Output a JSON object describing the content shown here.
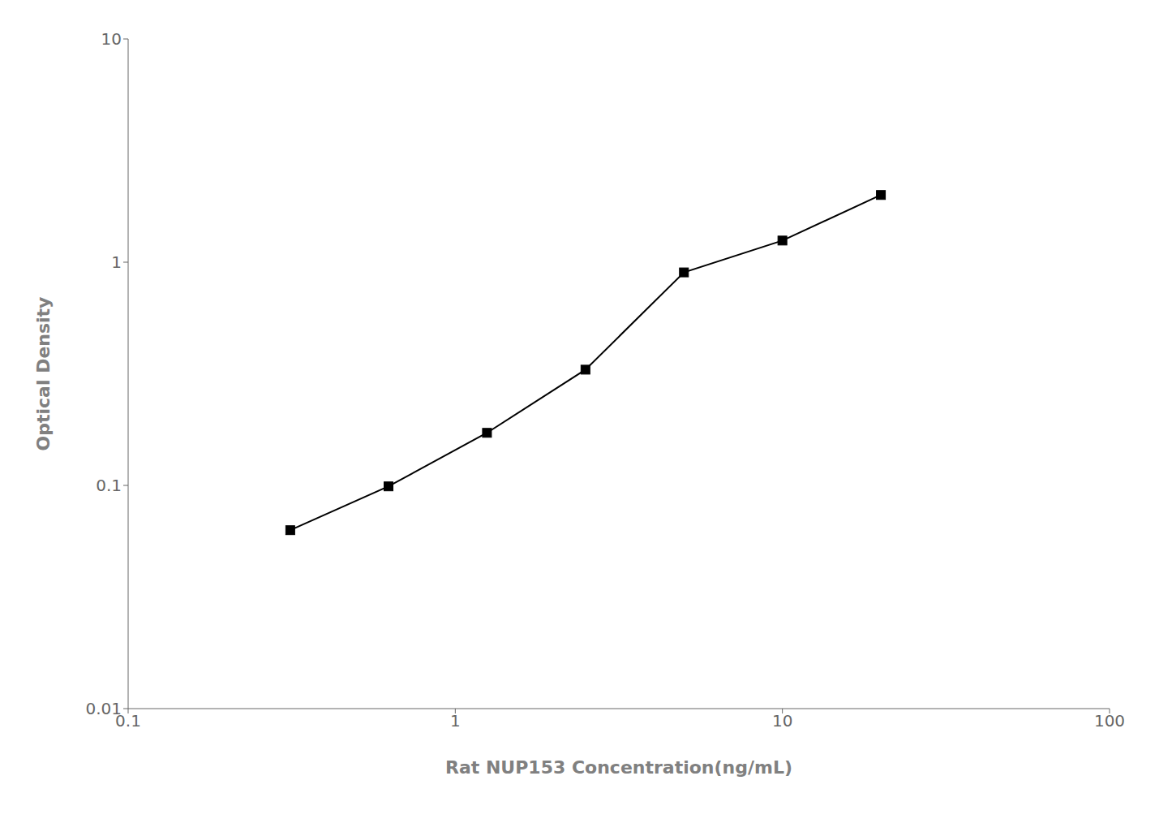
{
  "chart_data": {
    "type": "line",
    "x": [
      0.313,
      0.625,
      1.25,
      2.5,
      5.0,
      10.0,
      20.0
    ],
    "values": [
      0.063,
      0.099,
      0.172,
      0.33,
      0.9,
      1.25,
      2.0
    ],
    "xlabel": "Rat NUP153 Concentration(ng/mL)",
    "ylabel": "Optical Density",
    "xlim": [
      0.1,
      100
    ],
    "ylim": [
      0.01,
      10
    ],
    "xticks": [
      0.1,
      1,
      10,
      100
    ],
    "yticks": [
      0.01,
      0.1,
      1,
      10
    ],
    "log": true,
    "grid": false,
    "color": "#000000",
    "marker": "square"
  }
}
